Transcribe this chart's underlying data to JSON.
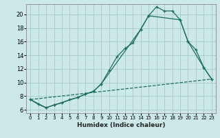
{
  "xlabel": "Humidex (Indice chaleur)",
  "background_color": "#cce8e8",
  "grid_color": "#aacccc",
  "line_color": "#1a6e5e",
  "xlim": [
    -0.5,
    23.5
  ],
  "ylim": [
    5.5,
    21.5
  ],
  "yticks": [
    6,
    8,
    10,
    12,
    14,
    16,
    18,
    20
  ],
  "xticks": [
    0,
    1,
    2,
    3,
    4,
    5,
    6,
    7,
    8,
    9,
    10,
    11,
    12,
    13,
    14,
    15,
    16,
    17,
    18,
    19,
    20,
    21,
    22,
    23
  ],
  "line1_x": [
    0,
    1,
    2,
    3,
    4,
    5,
    6,
    7,
    8,
    9,
    10,
    11,
    12,
    13,
    14,
    15,
    16,
    17,
    18,
    19,
    20,
    21,
    22,
    23
  ],
  "line1_y": [
    7.5,
    6.8,
    6.3,
    6.7,
    7.0,
    7.5,
    7.8,
    8.3,
    8.7,
    9.8,
    11.8,
    13.8,
    15.0,
    15.8,
    17.8,
    19.8,
    21.1,
    20.5,
    20.5,
    19.2,
    16.0,
    14.8,
    12.2,
    10.5
  ],
  "line2_x": [
    0,
    2,
    3,
    6,
    7,
    8,
    9,
    14,
    15,
    19,
    20,
    22,
    23
  ],
  "line2_y": [
    7.5,
    6.3,
    6.7,
    7.8,
    8.3,
    8.7,
    9.8,
    17.8,
    19.8,
    19.2,
    16.0,
    12.2,
    10.5
  ],
  "line3_x": [
    0,
    23
  ],
  "line3_y": [
    7.5,
    10.5
  ]
}
